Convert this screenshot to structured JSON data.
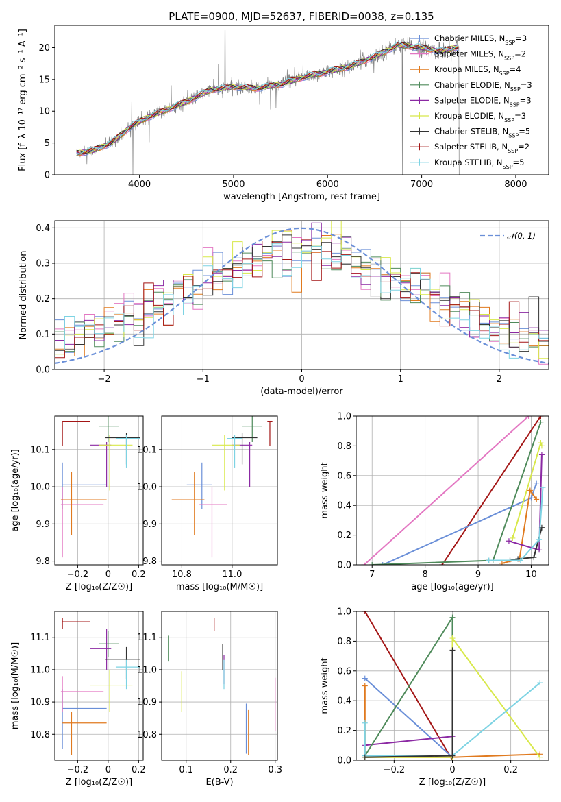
{
  "figure": {
    "title": "PLATE=0900, MJD=52637, FIBERID=0038, z=0.135"
  },
  "chart_data": [
    {
      "id": "spectrum",
      "type": "line",
      "xlabel": "wavelength [Angstrom, rest frame]",
      "ylabel": "Flux [f_λ 10⁻¹⁷ erg cm⁻² s⁻¹ A⁻¹]",
      "xlim": [
        3100,
        8350
      ],
      "ylim": [
        0,
        23.5
      ],
      "xticks": [
        4000,
        5000,
        6000,
        7000,
        8000
      ],
      "yticks": [
        0,
        5,
        10,
        15,
        20
      ],
      "grid": false,
      "legend_position": "right",
      "data_color": "#808080",
      "continuum_anchors": {
        "x": [
          3330,
          3500,
          3700,
          3900,
          4050,
          4250,
          4500,
          4750,
          5000,
          5250,
          5500,
          5750,
          6000,
          6250,
          6500,
          6750,
          7000,
          7200,
          7400
        ],
        "y": [
          3.4,
          3.8,
          5.0,
          7.5,
          8.8,
          10.0,
          11.5,
          13.3,
          13.8,
          13.6,
          14.2,
          15.4,
          16.2,
          17.1,
          18.6,
          20.4,
          20.0,
          19.4,
          20.2
        ]
      },
      "series": [
        {
          "name": "Chabrier MILES, N_SSP=3",
          "color": "#6a8fd8"
        },
        {
          "name": "Salpeter MILES, N_SSP=2",
          "color": "#e377c2"
        },
        {
          "name": "Kroupa MILES, N_SSP=4",
          "color": "#e07a1f"
        },
        {
          "name": "Chabrier ELODIE, N_SSP=3",
          "color": "#4e8a5a"
        },
        {
          "name": "Salpeter ELODIE, N_SSP=3",
          "color": "#8b29a3"
        },
        {
          "name": "Kroupa ELODIE, N_SSP=3",
          "color": "#d8e84a"
        },
        {
          "name": "Chabrier STELIB, N_SSP=5",
          "color": "#333333"
        },
        {
          "name": "Salpeter STELIB, N_SSP=2",
          "color": "#a31515"
        },
        {
          "name": "Kroupa STELIB, N_SSP=5",
          "color": "#7dd3e3"
        }
      ]
    },
    {
      "id": "residuals",
      "type": "histogram",
      "xlabel": "(data-model)/error",
      "ylabel": "Normed distribution",
      "xlim": [
        -2.5,
        2.5
      ],
      "ylim": [
        0,
        0.42
      ],
      "xticks": [
        -2,
        -1,
        0,
        1,
        2
      ],
      "yticks": [
        0.0,
        0.1,
        0.2,
        0.3,
        0.4
      ],
      "grid": true,
      "legend_position": "top-right",
      "reference_curve": {
        "name": "N(0, 1)",
        "label_tex": "𝒩(0, 1)",
        "color": "#6a8fd8",
        "style": "dashed"
      },
      "bin_width": 0.1,
      "series_colors": [
        "#6a8fd8",
        "#e377c2",
        "#e07a1f",
        "#4e8a5a",
        "#8b29a3",
        "#d8e84a",
        "#333333",
        "#a31515",
        "#7dd3e3"
      ]
    },
    {
      "id": "age-vs-Z",
      "type": "errorbar",
      "xlabel": "Z [log₁₀(Z/Z☉)]",
      "ylabel": "age  [log₁₀(age/yr)]",
      "xlim": [
        -0.35,
        0.23
      ],
      "ylim": [
        9.79,
        10.19
      ],
      "xticks": [
        -0.2,
        0.0,
        0.2
      ],
      "yticks": [
        9.8,
        9.9,
        10.0,
        10.1
      ],
      "grid": true,
      "points": [
        {
          "series": "Chabrier MILES",
          "color": "#6a8fd8",
          "x": -0.3,
          "y": 10.005,
          "xlo": -0.3,
          "xhi": -0.01,
          "ylo": 9.94,
          "yhi": 10.065
        },
        {
          "series": "Salpeter MILES",
          "color": "#e377c2",
          "x": -0.3,
          "y": 9.952,
          "xlo": -0.31,
          "xhi": -0.03,
          "ylo": 9.81,
          "yhi": 10.0
        },
        {
          "series": "Kroupa MILES",
          "color": "#e07a1f",
          "x": -0.24,
          "y": 9.965,
          "xlo": -0.31,
          "xhi": -0.01,
          "ylo": 9.87,
          "yhi": 10.04
        },
        {
          "series": "Chabrier ELODIE",
          "color": "#4e8a5a",
          "x": 0.0,
          "y": 10.163,
          "xlo": -0.06,
          "xhi": 0.07,
          "ylo": 10.12,
          "yhi": 10.19
        },
        {
          "series": "Salpeter ELODIE",
          "color": "#8b29a3",
          "x": -0.01,
          "y": 10.112,
          "xlo": -0.12,
          "xhi": 0.02,
          "ylo": 10.0,
          "yhi": 10.12
        },
        {
          "series": "Kroupa ELODIE",
          "color": "#d8e84a",
          "x": 0.01,
          "y": 10.112,
          "xlo": -0.06,
          "xhi": 0.16,
          "ylo": 9.99,
          "yhi": 10.14
        },
        {
          "series": "Chabrier STELIB",
          "color": "#333333",
          "x": 0.12,
          "y": 10.132,
          "xlo": -0.02,
          "xhi": 0.21,
          "ylo": 10.06,
          "yhi": 10.145
        },
        {
          "series": "Salpeter STELIB",
          "color": "#a31515",
          "x": -0.3,
          "y": 10.176,
          "xlo": -0.3,
          "xhi": -0.12,
          "ylo": 10.11,
          "yhi": 10.176
        },
        {
          "series": "Kroupa STELIB",
          "color": "#7dd3e3",
          "x": 0.12,
          "y": 10.13,
          "xlo": 0.05,
          "xhi": 0.21,
          "ylo": 10.05,
          "yhi": 10.14
        }
      ]
    },
    {
      "id": "age-vs-mass",
      "type": "errorbar",
      "xlabel": "mass [log₁₀(M/M☉)]",
      "ylabel": "",
      "xlim": [
        10.72,
        11.18
      ],
      "ylim": [
        9.79,
        10.19
      ],
      "xticks": [
        10.8,
        11.0
      ],
      "yticks": [
        9.8,
        9.9,
        10.0,
        10.1
      ],
      "grid": true,
      "points": [
        {
          "series": "Chabrier MILES",
          "color": "#6a8fd8",
          "x": 10.88,
          "y": 10.005,
          "xlo": 10.82,
          "xhi": 10.92,
          "ylo": 9.94,
          "yhi": 10.065
        },
        {
          "series": "Salpeter MILES",
          "color": "#e377c2",
          "x": 10.92,
          "y": 9.952,
          "xlo": 10.87,
          "xhi": 10.98,
          "ylo": 9.81,
          "yhi": 10.0
        },
        {
          "series": "Kroupa MILES",
          "color": "#e07a1f",
          "x": 10.85,
          "y": 9.965,
          "xlo": 10.76,
          "xhi": 10.89,
          "ylo": 9.87,
          "yhi": 10.04
        },
        {
          "series": "Chabrier ELODIE",
          "color": "#4e8a5a",
          "x": 11.08,
          "y": 10.163,
          "xlo": 11.04,
          "xhi": 11.12,
          "ylo": 10.12,
          "yhi": 10.19
        },
        {
          "series": "Salpeter ELODIE",
          "color": "#8b29a3",
          "x": 11.07,
          "y": 10.112,
          "xlo": 11.0,
          "xhi": 11.08,
          "ylo": 10.0,
          "yhi": 10.12
        },
        {
          "series": "Kroupa ELODIE",
          "color": "#d8e84a",
          "x": 10.97,
          "y": 10.112,
          "xlo": 10.92,
          "xhi": 11.03,
          "ylo": 9.99,
          "yhi": 10.14
        },
        {
          "series": "Chabrier STELIB",
          "color": "#333333",
          "x": 11.04,
          "y": 10.132,
          "xlo": 11.0,
          "xhi": 11.1,
          "ylo": 10.06,
          "yhi": 10.145
        },
        {
          "series": "Salpeter STELIB",
          "color": "#a31515",
          "x": 11.15,
          "y": 10.176,
          "xlo": 11.14,
          "xhi": 11.16,
          "ylo": 10.11,
          "yhi": 10.176
        },
        {
          "series": "Kroupa STELIB",
          "color": "#7dd3e3",
          "x": 11.01,
          "y": 10.13,
          "xlo": 10.98,
          "xhi": 11.04,
          "ylo": 10.05,
          "yhi": 10.14
        }
      ]
    },
    {
      "id": "massweight-vs-age",
      "type": "line",
      "xlabel": "age  [log₁₀(age/yr)]",
      "ylabel": "mass weight",
      "xlim": [
        6.7,
        10.33
      ],
      "ylim": [
        0,
        1.0
      ],
      "xticks": [
        7,
        8,
        9,
        10
      ],
      "yticks": [
        0.0,
        0.2,
        0.4,
        0.6,
        0.8,
        1.0
      ],
      "grid": true,
      "series": [
        {
          "name": "Salpeter MILES",
          "color": "#e377c2",
          "x": [
            6.85,
            9.95
          ],
          "y": [
            0.0,
            1.0
          ]
        },
        {
          "name": "Salpeter STELIB",
          "color": "#a31515",
          "x": [
            8.32,
            10.18
          ],
          "y": [
            0.0,
            1.0
          ]
        },
        {
          "name": "Chabrier MILES",
          "color": "#6a8fd8",
          "x": [
            7.2,
            10.0,
            10.1
          ],
          "y": [
            0.0,
            0.45,
            0.55
          ]
        },
        {
          "name": "Chabrier ELODIE",
          "color": "#4e8a5a",
          "x": [
            7.0,
            9.28,
            10.18
          ],
          "y": [
            0.0,
            0.03,
            0.96
          ]
        },
        {
          "name": "Kroupa MILES",
          "color": "#e07a1f",
          "x": [
            9.45,
            9.78,
            9.98,
            10.1
          ],
          "y": [
            0.01,
            0.04,
            0.5,
            0.44
          ]
        },
        {
          "name": "Salpeter ELODIE",
          "color": "#8b29a3",
          "x": [
            9.58,
            10.15,
            10.2
          ],
          "y": [
            0.16,
            0.1,
            0.74
          ]
        },
        {
          "name": "Kroupa ELODIE",
          "color": "#d8e84a",
          "x": [
            9.65,
            10.18,
            10.2
          ],
          "y": [
            0.18,
            0.82,
            0.8
          ]
        },
        {
          "name": "Chabrier STELIB",
          "color": "#333333",
          "x": [
            9.2,
            9.6,
            9.75,
            10.05,
            10.2
          ],
          "y": [
            0.03,
            0.03,
            0.04,
            0.05,
            0.25
          ]
        },
        {
          "name": "Kroupa STELIB",
          "color": "#7dd3e3",
          "x": [
            9.2,
            9.8,
            10.15,
            10.22
          ],
          "y": [
            0.03,
            0.03,
            0.17,
            0.52
          ]
        }
      ]
    },
    {
      "id": "mass-vs-Z",
      "type": "errorbar",
      "xlabel": "Z [log₁₀(Z/Z☉)]",
      "ylabel": "mass [log₁₀(M/M☉)]",
      "xlim": [
        -0.35,
        0.23
      ],
      "ylim": [
        10.72,
        11.18
      ],
      "xticks": [
        -0.2,
        0.0,
        0.2
      ],
      "yticks": [
        10.8,
        10.9,
        11.0,
        11.1
      ],
      "grid": true,
      "points": [
        {
          "series": "Chabrier MILES",
          "color": "#6a8fd8",
          "x": -0.3,
          "y": 10.88,
          "xlo": -0.3,
          "xhi": -0.01,
          "ylo": 10.755,
          "yhi": 10.94
        },
        {
          "series": "Salpeter MILES",
          "color": "#e377c2",
          "x": -0.3,
          "y": 10.932,
          "xlo": -0.31,
          "xhi": -0.03,
          "ylo": 10.87,
          "yhi": 10.98
        },
        {
          "series": "Kroupa MILES",
          "color": "#e07a1f",
          "x": -0.24,
          "y": 10.835,
          "xlo": -0.3,
          "xhi": -0.01,
          "ylo": 10.735,
          "yhi": 10.87
        },
        {
          "series": "Chabrier ELODIE",
          "color": "#4e8a5a",
          "x": 0.0,
          "y": 11.08,
          "xlo": -0.06,
          "xhi": 0.07,
          "ylo": 11.04,
          "yhi": 11.12
        },
        {
          "series": "Salpeter ELODIE",
          "color": "#8b29a3",
          "x": -0.01,
          "y": 11.065,
          "xlo": -0.12,
          "xhi": 0.02,
          "ylo": 11.0,
          "yhi": 11.125
        },
        {
          "series": "Kroupa ELODIE",
          "color": "#d8e84a",
          "x": 0.01,
          "y": 10.952,
          "xlo": -0.12,
          "xhi": 0.16,
          "ylo": 10.87,
          "yhi": 11.0
        },
        {
          "series": "Chabrier STELIB",
          "color": "#333333",
          "x": 0.12,
          "y": 11.032,
          "xlo": -0.02,
          "xhi": 0.21,
          "ylo": 10.97,
          "yhi": 11.07
        },
        {
          "series": "Salpeter STELIB",
          "color": "#a31515",
          "x": -0.3,
          "y": 11.148,
          "xlo": -0.3,
          "xhi": -0.12,
          "ylo": 11.125,
          "yhi": 11.16
        },
        {
          "series": "Kroupa STELIB",
          "color": "#7dd3e3",
          "x": 0.12,
          "y": 11.008,
          "xlo": 0.05,
          "xhi": 0.21,
          "ylo": 10.94,
          "yhi": 11.03
        }
      ]
    },
    {
      "id": "mass-vs-EBV",
      "type": "errorbar",
      "xlabel": "E(B-V)",
      "ylabel": "",
      "xlim": [
        0.045,
        0.305
      ],
      "ylim": [
        10.72,
        11.18
      ],
      "xticks": [
        0.1,
        0.2,
        0.3
      ],
      "yticks": [
        10.8,
        10.9,
        11.0,
        11.1
      ],
      "grid": true,
      "points": [
        {
          "series": "Chabrier MILES",
          "color": "#6a8fd8",
          "x": 0.235,
          "y": 10.82,
          "xlo": 0.235,
          "xhi": 0.235,
          "ylo": 10.74,
          "yhi": 10.895
        },
        {
          "series": "Salpeter MILES",
          "color": "#e377c2",
          "x": 0.3,
          "y": 10.895,
          "xlo": 0.3,
          "xhi": 0.3,
          "ylo": 10.81,
          "yhi": 10.975
        },
        {
          "series": "Kroupa MILES",
          "color": "#e07a1f",
          "x": 0.24,
          "y": 10.8,
          "xlo": 0.24,
          "xhi": 0.24,
          "ylo": 10.735,
          "yhi": 10.875
        },
        {
          "series": "Chabrier ELODIE",
          "color": "#4e8a5a",
          "x": 0.06,
          "y": 11.065,
          "xlo": 0.06,
          "xhi": 0.06,
          "ylo": 11.025,
          "yhi": 11.105
        },
        {
          "series": "Salpeter ELODIE",
          "color": "#8b29a3",
          "x": 0.185,
          "y": 11.0,
          "xlo": 0.185,
          "xhi": 0.185,
          "ylo": 10.955,
          "yhi": 11.045
        },
        {
          "series": "Kroupa ELODIE",
          "color": "#d8e84a",
          "x": 0.09,
          "y": 10.93,
          "xlo": 0.09,
          "xhi": 0.09,
          "ylo": 10.87,
          "yhi": 10.995
        },
        {
          "series": "Chabrier STELIB",
          "color": "#333333",
          "x": 0.182,
          "y": 11.04,
          "xlo": 0.182,
          "xhi": 0.182,
          "ylo": 11.0,
          "yhi": 11.08
        },
        {
          "series": "Salpeter STELIB",
          "color": "#a31515",
          "x": 0.163,
          "y": 11.14,
          "xlo": 0.163,
          "xhi": 0.163,
          "ylo": 11.12,
          "yhi": 11.16
        },
        {
          "series": "Kroupa STELIB",
          "color": "#7dd3e3",
          "x": 0.185,
          "y": 10.99,
          "xlo": 0.185,
          "xhi": 0.185,
          "ylo": 10.94,
          "yhi": 11.03
        }
      ]
    },
    {
      "id": "massweight-vs-Z",
      "type": "line",
      "xlabel": "Z [log₁₀(Z/Z☉)]",
      "ylabel": "mass weight",
      "xlim": [
        -0.33,
        0.33
      ],
      "ylim": [
        0,
        1.0
      ],
      "xticks": [
        -0.2,
        0.0,
        0.2
      ],
      "yticks": [
        0.0,
        0.2,
        0.4,
        0.6,
        0.8,
        1.0
      ],
      "grid": true,
      "series": [
        {
          "name": "Salpeter STELIB",
          "color": "#a31515",
          "x": [
            -0.3,
            0.0
          ],
          "y": [
            1.0,
            0.0
          ]
        },
        {
          "name": "Chabrier MILES",
          "color": "#6a8fd8",
          "x": [
            -0.3,
            0.0,
            0.0
          ],
          "y": [
            0.55,
            0.02,
            0.03
          ]
        },
        {
          "name": "Kroupa MILES",
          "color": "#e07a1f",
          "x": [
            -0.3,
            -0.3,
            0.0,
            0.3
          ],
          "y": [
            0.5,
            0.02,
            0.02,
            0.04
          ]
        },
        {
          "name": "Salpeter ELODIE",
          "color": "#8b29a3",
          "x": [
            -0.3,
            0.0
          ],
          "y": [
            0.1,
            0.16
          ]
        },
        {
          "name": "Chabrier ELODIE",
          "color": "#4e8a5a",
          "x": [
            -0.3,
            0.0,
            0.0
          ],
          "y": [
            0.03,
            0.96,
            0.0
          ]
        },
        {
          "name": "Kroupa ELODIE",
          "color": "#d8e84a",
          "x": [
            -0.3,
            0.0,
            0.0,
            0.3
          ],
          "y": [
            0.02,
            0.02,
            0.82,
            0.02
          ]
        },
        {
          "name": "Kroupa STELIB",
          "color": "#7dd3e3",
          "x": [
            -0.3,
            -0.3,
            0.0,
            0.3
          ],
          "y": [
            0.25,
            0.03,
            0.03,
            0.52
          ]
        },
        {
          "name": "Chabrier STELIB",
          "color": "#333333",
          "x": [
            -0.3,
            0.0,
            0.0
          ],
          "y": [
            0.02,
            0.03,
            0.74
          ]
        }
      ]
    }
  ]
}
